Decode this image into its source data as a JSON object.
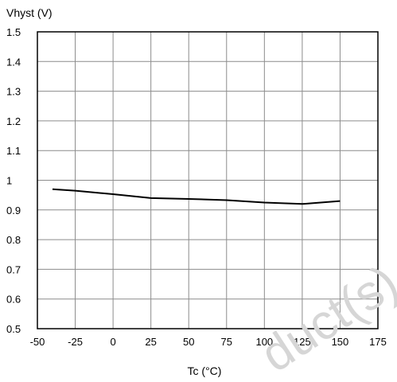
{
  "chart_data": {
    "type": "line",
    "ylabel": "Vhyst (V)",
    "xlabel": "Tc (°C)",
    "xlim": [
      -50,
      175
    ],
    "ylim": [
      0.5,
      1.5
    ],
    "x_ticks": [
      -50,
      -25,
      0,
      25,
      50,
      75,
      100,
      125,
      150,
      175
    ],
    "y_ticks": [
      0.5,
      0.6,
      0.7,
      0.8,
      0.9,
      1,
      1.1,
      1.2,
      1.3,
      1.4,
      1.5
    ],
    "grid": true,
    "series": [
      {
        "x": [
          -40,
          -25,
          0,
          25,
          50,
          75,
          100,
          125,
          150
        ],
        "y": [
          0.97,
          0.965,
          0.953,
          0.94,
          0.937,
          0.933,
          0.925,
          0.92,
          0.93
        ]
      }
    ]
  },
  "watermark": "duct(s)"
}
